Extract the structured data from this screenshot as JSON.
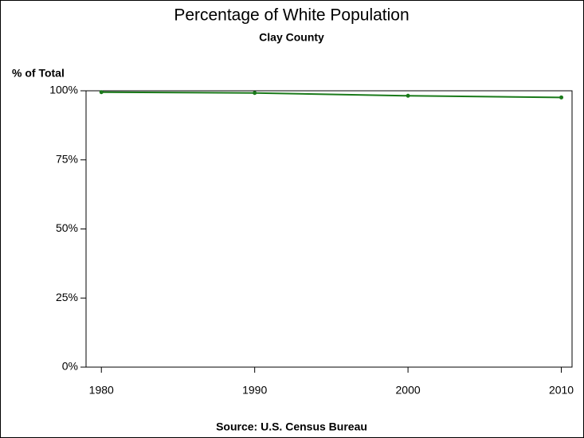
{
  "chart_data": {
    "type": "line",
    "title": "Percentage of White Population",
    "subtitle": "Clay County",
    "y_label": "% of Total",
    "footnote": "Source: U.S. Census Bureau",
    "x": [
      1980,
      1990,
      2000,
      2010
    ],
    "series": [
      {
        "name": "White",
        "color": "#1a7a1a",
        "values": [
          99.5,
          99.2,
          98.2,
          97.6
        ]
      }
    ],
    "xlim": [
      1979,
      2010.7
    ],
    "xticks": [
      1980,
      1990,
      2000,
      2010
    ],
    "ylim": [
      0,
      100
    ],
    "yticks": [
      {
        "value": 0,
        "label": "0%"
      },
      {
        "value": 25,
        "label": "25%"
      },
      {
        "value": 50,
        "label": "50%"
      },
      {
        "value": 75,
        "label": "75%"
      },
      {
        "value": 100,
        "label": "100%"
      }
    ]
  }
}
